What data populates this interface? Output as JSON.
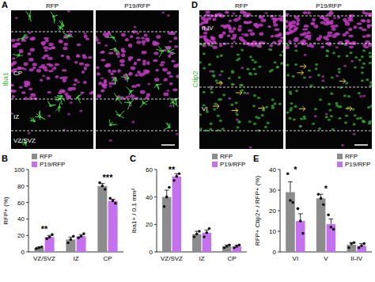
{
  "chart_data": [
    {
      "type": "bar",
      "title": "B",
      "ylabel": "RFP+ (%)",
      "categories": [
        "VZ/SVZ",
        "IZ",
        "CP"
      ],
      "ylim": [
        0,
        100
      ],
      "yticks": [
        0,
        20,
        40,
        60,
        80,
        100
      ],
      "legend": "top-left",
      "series": [
        {
          "name": "RFP",
          "color": "#8c8c8c",
          "values": [
            5,
            15,
            80
          ],
          "errors": [
            1,
            3,
            3
          ],
          "points": [
            [
              4,
              5,
              6
            ],
            [
              11,
              15,
              19
            ],
            [
              84,
              80,
              76
            ]
          ]
        },
        {
          "name": "P19/RFP",
          "color": "#c471ed",
          "values": [
            18,
            19,
            62
          ],
          "errors": [
            2,
            2,
            2
          ],
          "points": [
            [
              16,
              18,
              21
            ],
            [
              17,
              19,
              22
            ],
            [
              65,
              62,
              59
            ]
          ]
        }
      ],
      "annotations": [
        {
          "text": "**",
          "category": "VZ/SVZ"
        },
        {
          "text": "***",
          "category": "CP"
        }
      ]
    },
    {
      "type": "bar",
      "title": "C",
      "ylabel": "Iba1+ / 0.1 mm²",
      "categories": [
        "VZ/SVZ",
        "IZ",
        "CP"
      ],
      "ylim": [
        0,
        60
      ],
      "yticks": [
        0,
        20,
        40,
        60
      ],
      "legend": "top-right",
      "series": [
        {
          "name": "RFP",
          "color": "#8c8c8c",
          "values": [
            40,
            13,
            4
          ],
          "errors": [
            5,
            2,
            1
          ],
          "points": [
            [
              33,
              40,
              47
            ],
            [
              11,
              13,
              15
            ],
            [
              3,
              4,
              5
            ]
          ]
        },
        {
          "name": "P19/RFP",
          "color": "#c471ed",
          "values": [
            55,
            14,
            4
          ],
          "errors": [
            2,
            2,
            1
          ],
          "points": [
            [
              52,
              55,
              57
            ],
            [
              11,
              14,
              17
            ],
            [
              3,
              4,
              5
            ]
          ]
        }
      ],
      "annotations": [
        {
          "text": "**",
          "category": "VZ/SVZ"
        }
      ]
    },
    {
      "type": "bar",
      "title": "E",
      "ylabel": "RFP+ Ctip2+ / RFP+ (%)",
      "categories": [
        "VI",
        "V",
        "II-IV"
      ],
      "ylim": [
        0,
        40
      ],
      "yticks": [
        0,
        10,
        20,
        30,
        40
      ],
      "legend": "top-right",
      "series": [
        {
          "name": "RFP",
          "color": "#8c8c8c",
          "values": [
            29,
            26,
            3.5
          ],
          "errors": [
            5,
            2,
            1
          ],
          "points": [
            [
              38,
              25,
              24
            ],
            [
              28,
              26,
              23
            ],
            [
              2,
              4,
              4.5
            ]
          ]
        },
        {
          "name": "P19/RFP",
          "color": "#c471ed",
          "values": [
            15,
            13.5,
            3
          ],
          "errors": [
            3.5,
            2.5,
            1
          ],
          "points": [
            [
              21,
              15,
              9
            ],
            [
              18,
              12,
              11
            ],
            [
              2,
              3,
              4
            ]
          ]
        }
      ],
      "annotations": [
        {
          "text": "*",
          "category": "VI"
        },
        {
          "text": "*",
          "category": "V"
        }
      ]
    }
  ],
  "images": [
    {
      "label": "A",
      "stain": "Iba1",
      "conditions": [
        "RFP",
        "P19/RFP"
      ],
      "layers": [
        "CP",
        "IZ",
        "VZ/SVZ"
      ]
    },
    {
      "label": "D",
      "stain": "Ctip2",
      "conditions": [
        "RFP",
        "P19/RFP"
      ],
      "layers": [
        "II-IV",
        "VI"
      ]
    }
  ]
}
